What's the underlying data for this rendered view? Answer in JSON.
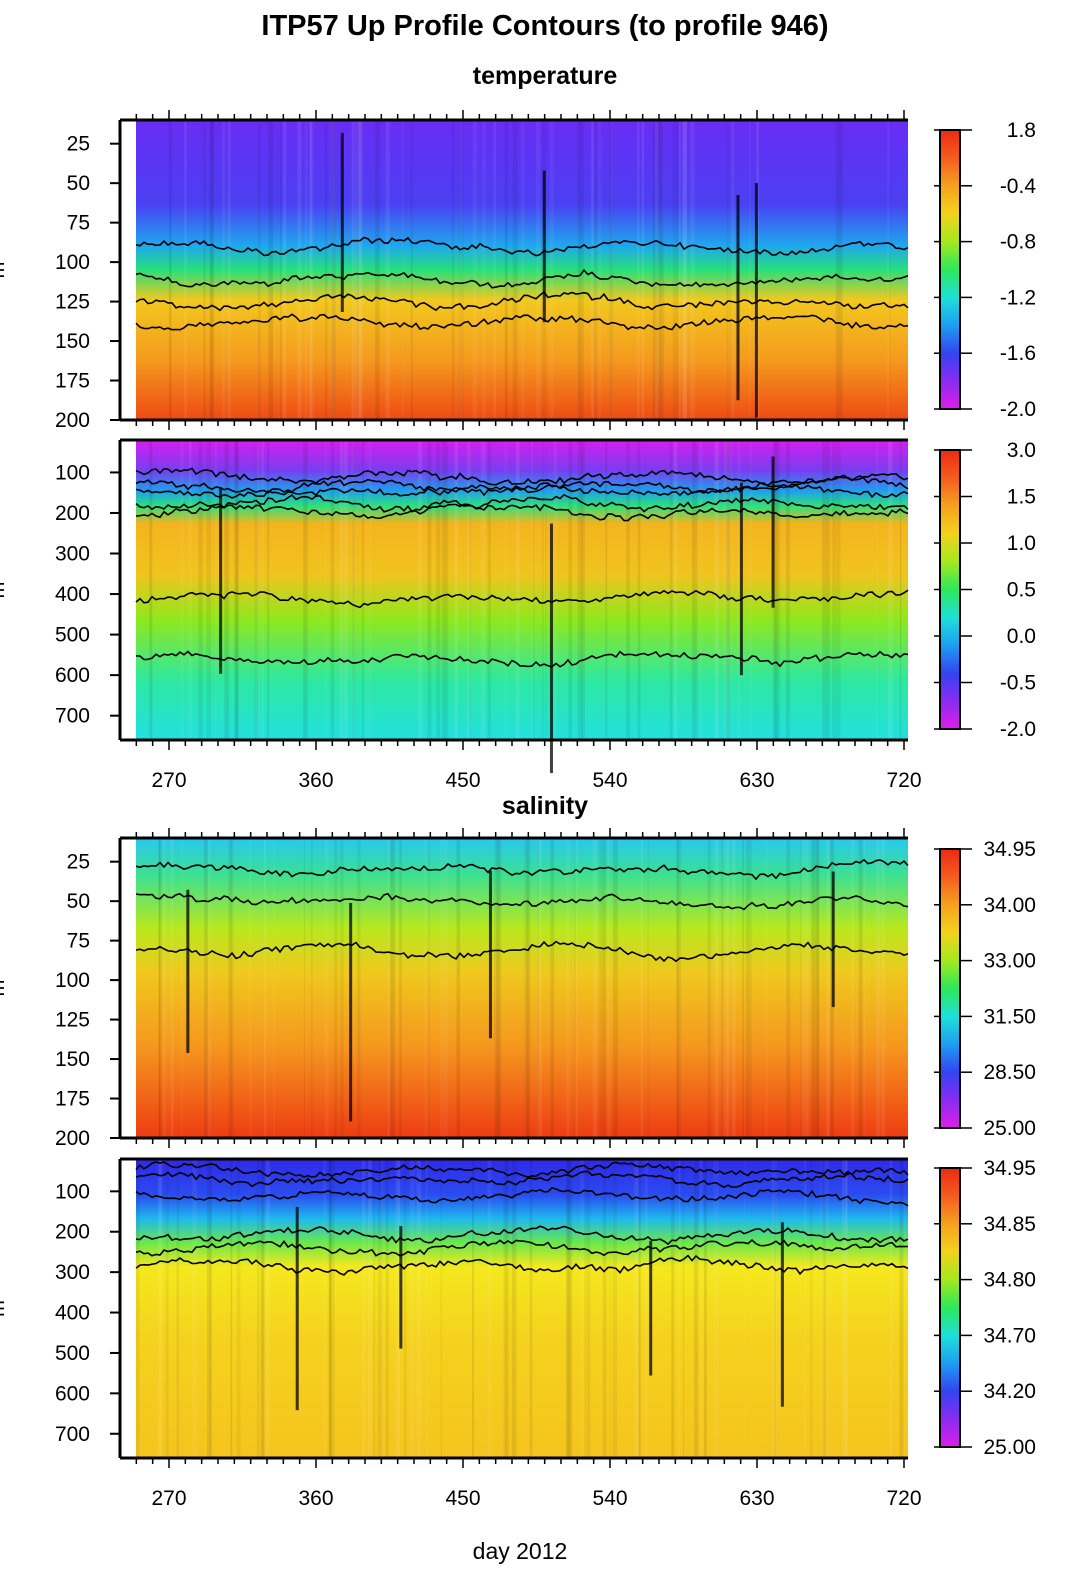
{
  "title": "ITP57 Up Profile Contours (to profile 946)",
  "xlabel": "day 2012",
  "ylabel": "m",
  "colors": {
    "temperature_scale": [
      "#e01ee8",
      "#8a2cf2",
      "#3344f0",
      "#1e9ef2",
      "#1ee0d8",
      "#2ce85a",
      "#a6e81e",
      "#f2d21e",
      "#f5a21e",
      "#f55c1e",
      "#ec2a12"
    ],
    "contour": "#000000"
  },
  "chart_data": [
    {
      "type": "heatmap",
      "group_title": "temperature",
      "x_ticks": [
        270,
        360,
        450,
        540,
        630,
        720
      ],
      "xlim": [
        240,
        720
      ],
      "ylim": [
        10,
        200
      ],
      "y_ticks": [
        25,
        50,
        75,
        100,
        125,
        150,
        175,
        200
      ],
      "colorbar_labels": [
        "1.8",
        "-0.4",
        "-0.8",
        "-1.2",
        "-1.6",
        "-2.0"
      ],
      "contour_depths": [
        90,
        112,
        125,
        138
      ]
    },
    {
      "type": "heatmap",
      "xlim": [
        240,
        720
      ],
      "ylim": [
        20,
        760
      ],
      "y_ticks": [
        100,
        200,
        300,
        400,
        500,
        600,
        700
      ],
      "colorbar_labels": [
        "3.0",
        "1.5",
        "1.0",
        "0.5",
        "0.0",
        "-0.5",
        "-2.0"
      ],
      "contour_depths": [
        110,
        130,
        150,
        175,
        200,
        410,
        560
      ]
    },
    {
      "type": "heatmap",
      "group_title": "salinity",
      "x_ticks": [
        270,
        360,
        450,
        540,
        630,
        720
      ],
      "xlim": [
        240,
        720
      ],
      "ylim": [
        10,
        200
      ],
      "y_ticks": [
        25,
        50,
        75,
        100,
        125,
        150,
        175,
        200
      ],
      "colorbar_labels": [
        "34.95",
        "34.00",
        "33.00",
        "31.50",
        "28.50",
        "25.00"
      ],
      "contour_depths": [
        30,
        50,
        82
      ]
    },
    {
      "type": "heatmap",
      "xlim": [
        240,
        720
      ],
      "ylim": [
        20,
        760
      ],
      "y_ticks": [
        100,
        200,
        300,
        400,
        500,
        600,
        700
      ],
      "colorbar_labels": [
        "34.95",
        "34.85",
        "34.80",
        "34.70",
        "34.20",
        "25.00"
      ],
      "contour_depths": [
        50,
        70,
        110,
        210,
        240,
        285
      ]
    }
  ]
}
